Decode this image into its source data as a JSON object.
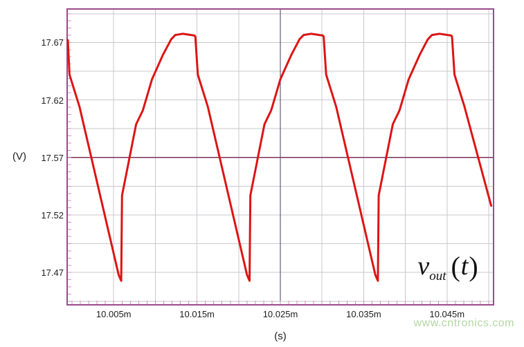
{
  "watermark": "www.cntronics.com",
  "annotation": {
    "variable": "v",
    "subscript": "out",
    "open_paren": "(",
    "argument": "t",
    "close_paren": ")"
  },
  "chart_data": {
    "type": "line",
    "title": "",
    "xlabel": "(s)",
    "ylabel": "(V)",
    "x_units_note": "time axis values are milliseconds (m = milli)",
    "xlim": [
      9.9995,
      10.0505
    ],
    "ylim": [
      17.4425,
      17.6985
    ],
    "x_ticks": [
      {
        "value": 10.005,
        "label": "10.005m"
      },
      {
        "value": 10.015,
        "label": "10.015m"
      },
      {
        "value": 10.025,
        "label": "10.025m"
      },
      {
        "value": 10.035,
        "label": "10.035m"
      },
      {
        "value": 10.045,
        "label": "10.045m"
      }
    ],
    "y_ticks": [
      {
        "value": 17.47,
        "label": "17.47"
      },
      {
        "value": 17.52,
        "label": "17.52"
      },
      {
        "value": 17.57,
        "label": "17.57"
      },
      {
        "value": 17.62,
        "label": "17.62"
      },
      {
        "value": 17.67,
        "label": "17.67"
      }
    ],
    "grid": {
      "x_start": 10.005,
      "x_step": 0.005,
      "x_count": 10,
      "y_start": 17.445,
      "y_step": 0.025,
      "y_count": 11,
      "color": "#cac7cd"
    },
    "minor_ticks": {
      "x_start": 10.0,
      "x_step": 0.001,
      "x_count": 51,
      "y_start": 17.445,
      "y_step": 0.00625,
      "y_count": 41,
      "length": 5,
      "color": "#d48fb9"
    },
    "cursor": {
      "x": 10.025,
      "x_color": "#44395f",
      "y": 17.57,
      "y_color": "#7d2f58"
    },
    "border_color": "#9b4b8b",
    "background": "#ffffff",
    "series": [
      {
        "name": "vout(t)",
        "color": "#dc1414",
        "stroke_width": 3,
        "points": [
          [
            9.9995,
            17.672
          ],
          [
            9.9997,
            17.642
          ],
          [
            10.0009,
            17.614
          ],
          [
            10.0056,
            17.468
          ],
          [
            10.0059,
            17.4628
          ],
          [
            10.006,
            17.537
          ],
          [
            10.0077,
            17.599
          ],
          [
            10.0085,
            17.611
          ],
          [
            10.0096,
            17.638
          ],
          [
            10.0109,
            17.659
          ],
          [
            10.0119,
            17.6728
          ],
          [
            10.0124,
            17.6765
          ],
          [
            10.0133,
            17.6775
          ],
          [
            10.0147,
            17.676
          ],
          [
            10.0148,
            17.675
          ],
          [
            10.0151,
            17.642
          ],
          [
            10.0163,
            17.614
          ],
          [
            10.021,
            17.468
          ],
          [
            10.0213,
            17.4628
          ],
          [
            10.0214,
            17.537
          ],
          [
            10.0231,
            17.599
          ],
          [
            10.0239,
            17.611
          ],
          [
            10.025,
            17.638
          ],
          [
            10.0263,
            17.659
          ],
          [
            10.0273,
            17.6728
          ],
          [
            10.0278,
            17.6765
          ],
          [
            10.0287,
            17.6775
          ],
          [
            10.0301,
            17.676
          ],
          [
            10.0302,
            17.675
          ],
          [
            10.0305,
            17.642
          ],
          [
            10.0317,
            17.614
          ],
          [
            10.0364,
            17.468
          ],
          [
            10.0367,
            17.4628
          ],
          [
            10.0368,
            17.537
          ],
          [
            10.0385,
            17.599
          ],
          [
            10.0393,
            17.611
          ],
          [
            10.0404,
            17.638
          ],
          [
            10.0417,
            17.659
          ],
          [
            10.0427,
            17.6728
          ],
          [
            10.0432,
            17.6765
          ],
          [
            10.0441,
            17.6775
          ],
          [
            10.0455,
            17.676
          ],
          [
            10.0456,
            17.675
          ],
          [
            10.0459,
            17.642
          ],
          [
            10.0471,
            17.614
          ],
          [
            10.0503,
            17.528
          ]
        ]
      }
    ]
  }
}
